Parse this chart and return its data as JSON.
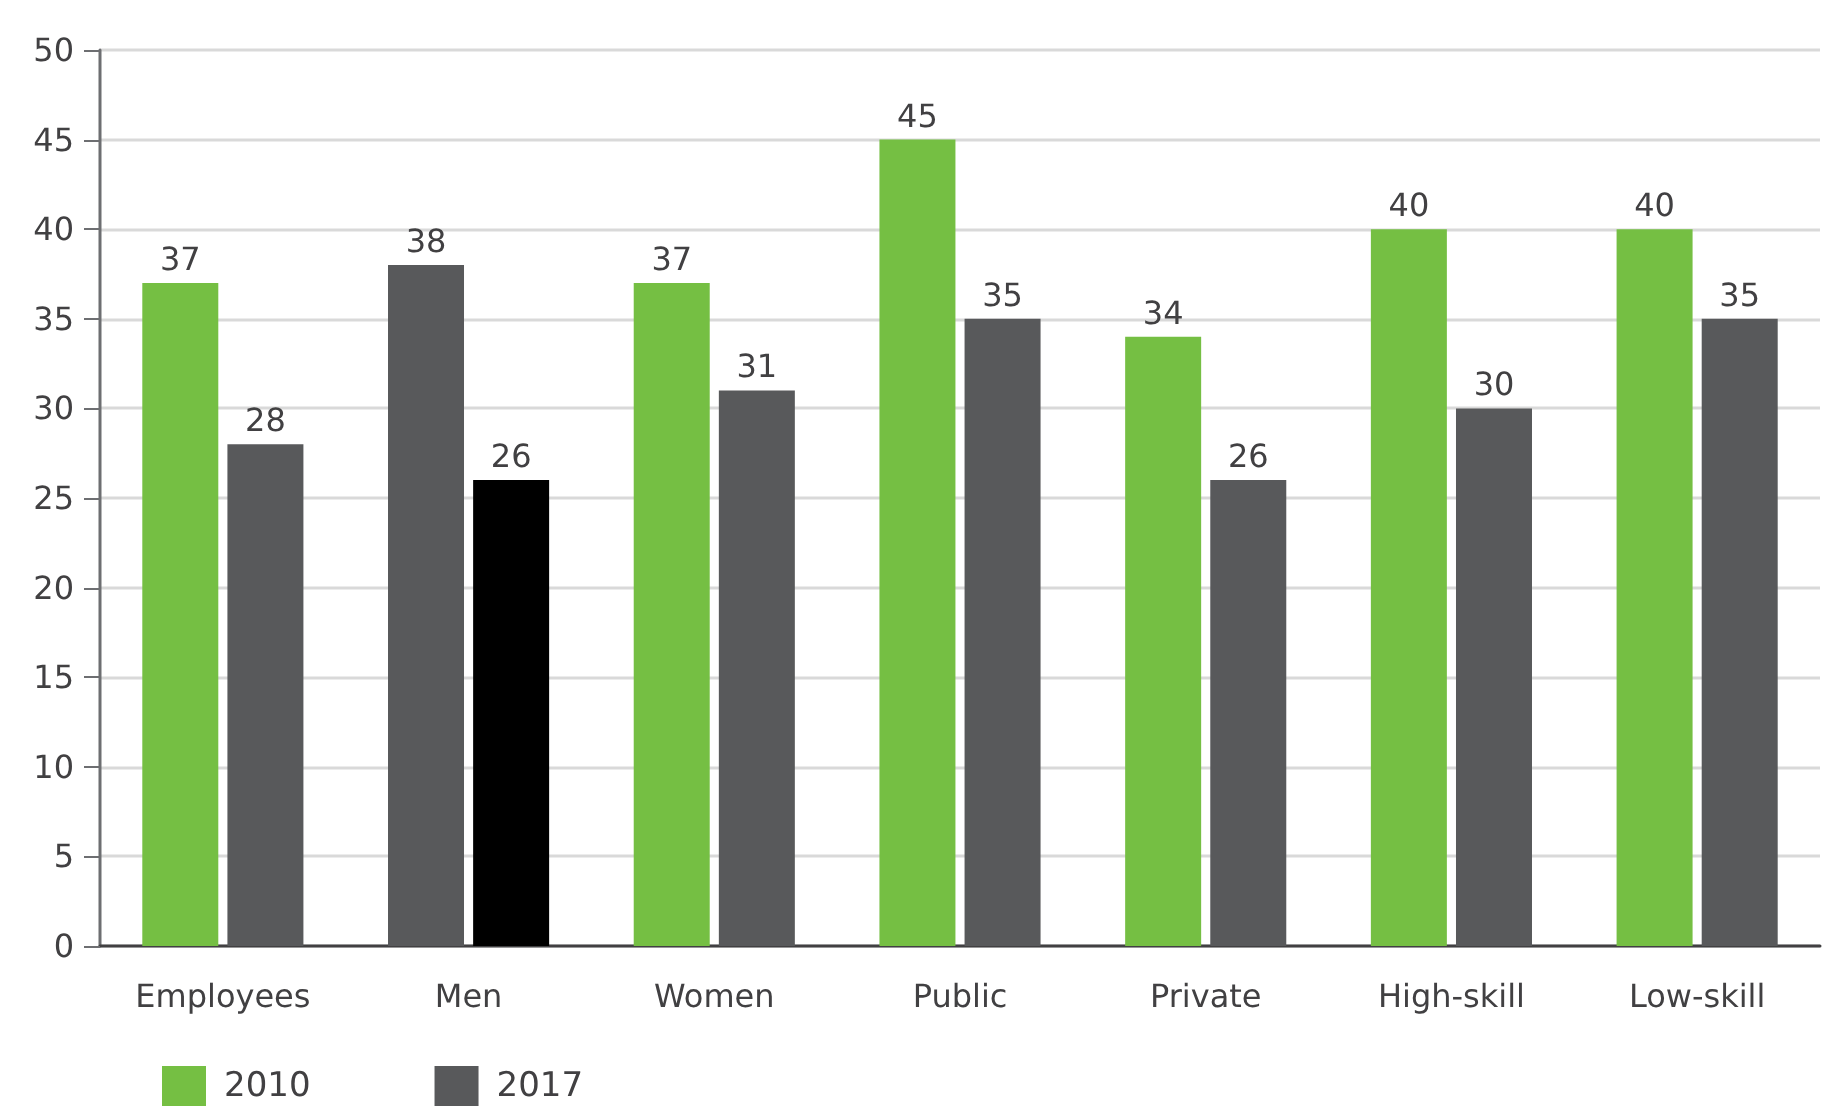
{
  "chart_data": {
    "type": "bar",
    "categories": [
      "Employees",
      "Men",
      "Women",
      "Public",
      "Private",
      "High-skill",
      "Low-skill"
    ],
    "series": [
      {
        "name": "2010",
        "color": "#75bf43",
        "colors": [
          "#75bf43",
          "#58595b",
          "#75bf43",
          "#75bf43",
          "#75bf43",
          "#75bf43",
          "#75bf43"
        ],
        "values": [
          37,
          38,
          37,
          45,
          34,
          40,
          40
        ]
      },
      {
        "name": "2017",
        "color": "#58595b",
        "colors": [
          "#58595b",
          "#000000",
          "#58595b",
          "#58595b",
          "#58595b",
          "#58595b",
          "#58595b"
        ],
        "values": [
          28,
          26,
          31,
          35,
          26,
          30,
          35
        ]
      }
    ],
    "ylim": [
      0,
      50
    ],
    "yticks": [
      0,
      5,
      10,
      15,
      20,
      25,
      30,
      35,
      40,
      45,
      50
    ],
    "grid": "y",
    "legend": "bottom left",
    "data_labels": true
  }
}
